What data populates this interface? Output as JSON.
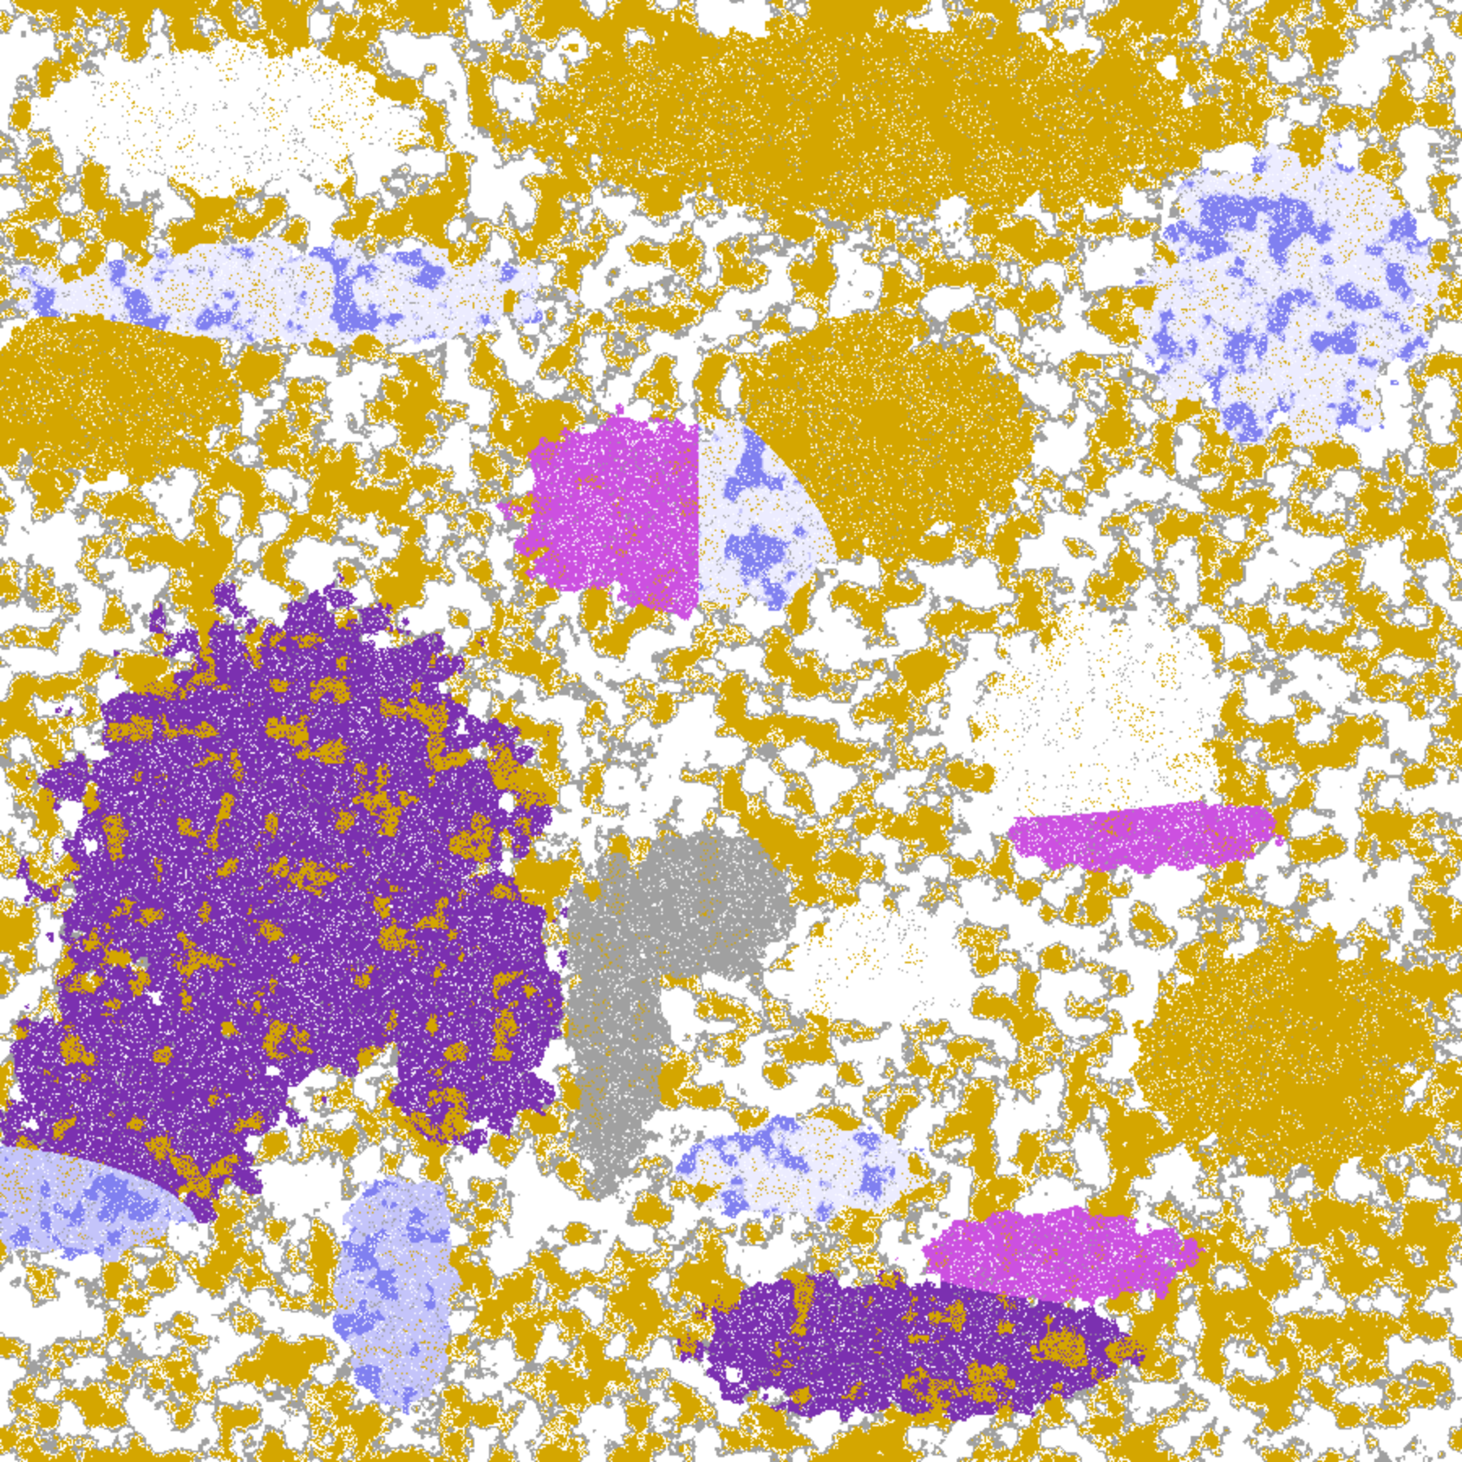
{
  "palette": {
    "clear": "#ffffff",
    "gold": "#d4a600",
    "purple": "#7b30b0",
    "gray": "#a0a0a0",
    "lavender_light": "#ececff",
    "lavender": "#c4c4fa",
    "periwinkle": "#8080f0",
    "magenta": "#cc50e0"
  }
}
